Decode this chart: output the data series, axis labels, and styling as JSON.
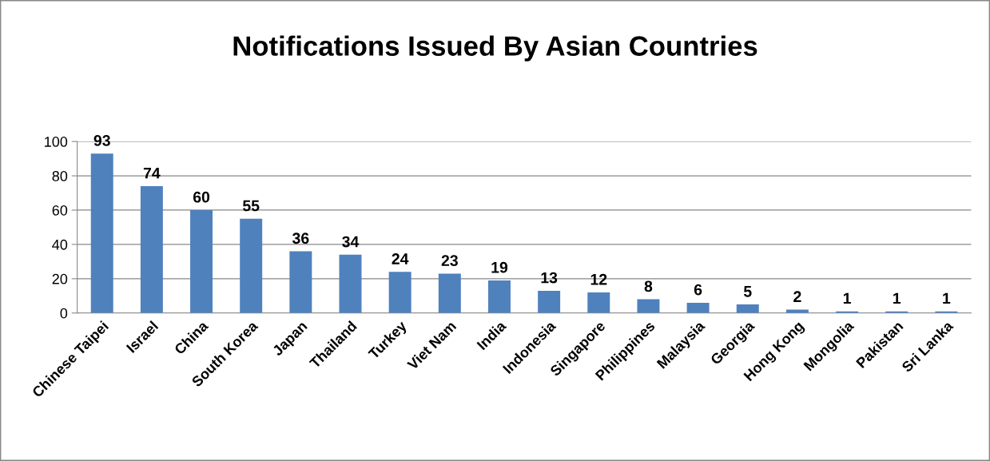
{
  "chart_data": {
    "type": "bar",
    "title": "Notifications Issued By Asian Countries",
    "categories": [
      "Chinese Taipei",
      "Israel",
      "China",
      "South Korea",
      "Japan",
      "Thailand",
      "Turkey",
      "Viet Nam",
      "India",
      "Indonesia",
      "Singapore",
      "Philippines",
      "Malaysia",
      "Georgia",
      "Hong Kong",
      "Mongolia",
      "Pakistan",
      "Sri Lanka"
    ],
    "values": [
      93,
      74,
      60,
      55,
      36,
      34,
      24,
      23,
      19,
      13,
      12,
      8,
      6,
      5,
      2,
      1,
      1,
      1
    ],
    "color": "#4f81bd",
    "ylim": [
      0,
      100
    ],
    "yticks": [
      0,
      20,
      40,
      60,
      80,
      100
    ],
    "grid": "y",
    "data_labels": true
  }
}
